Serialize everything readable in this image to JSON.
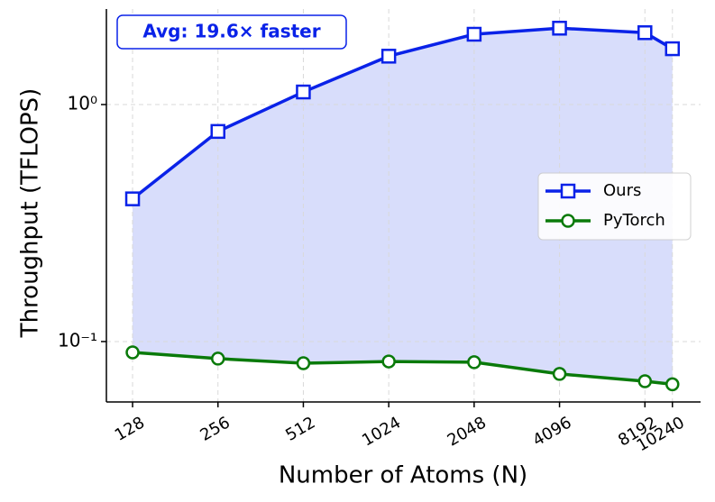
{
  "chart_data": {
    "type": "line",
    "xlabel": "Number of Atoms (N)",
    "ylabel": "Throughput (TFLOPS)",
    "annotation": "Avg: 19.6× faster",
    "x": [
      128,
      256,
      512,
      1024,
      2048,
      4096,
      8192,
      10240
    ],
    "series": [
      {
        "name": "Ours",
        "color": "#0a22e8",
        "marker": "square",
        "values": [
          0.4,
          0.77,
          1.13,
          1.6,
          1.98,
          2.1,
          2.01,
          1.72
        ]
      },
      {
        "name": "PyTorch",
        "color": "#0a7a0a",
        "marker": "circle",
        "values": [
          0.09,
          0.0847,
          0.081,
          0.0824,
          0.0818,
          0.073,
          0.068,
          0.066
        ]
      }
    ],
    "fill_between_color": "#d6dbfb",
    "xscale": "log",
    "yscale": "log",
    "xlim": [
      103.5,
      12870
    ],
    "ylim": [
      0.0556,
      2.53
    ],
    "xticks": [
      128,
      256,
      512,
      1024,
      2048,
      4096,
      8192,
      10240
    ],
    "yticks": [
      {
        "value": 1,
        "label": "10⁰"
      },
      {
        "value": 0.1,
        "label": "10⁻¹"
      }
    ],
    "grid": true,
    "legend": "center right"
  }
}
